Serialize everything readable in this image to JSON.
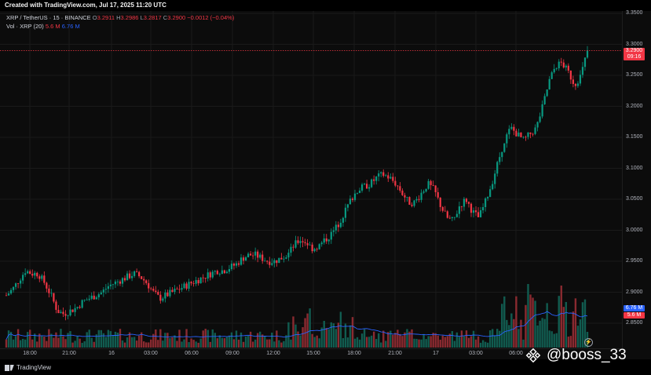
{
  "header": {
    "created_text": "Created with TradingView.com, Jul 17, 2025 11:20 UTC"
  },
  "legend": {
    "symbol": "XRP / TetherUS · 15 · BINANCE",
    "o_label": "O",
    "o_value": "3.2911",
    "h_label": "H",
    "h_value": "3.2986",
    "l_label": "L",
    "l_value": "3.2817",
    "c_label": "C",
    "c_value": "3.2900",
    "change": "−0.0012 (−0.04%)",
    "vol_label": "Vol · XRP (20)",
    "vol_value": "5.6 M",
    "vol_ma_value": "6.76 M"
  },
  "price_tags": {
    "last_price": "3.2900",
    "countdown": "09:16",
    "vol_ma": "6.76 M",
    "vol": "5.6 M"
  },
  "footer": {
    "brand": "TradingView",
    "watermark": "@booss_33"
  },
  "colors": {
    "up": "#089981",
    "down": "#f23645",
    "vol_up": "#115c50",
    "vol_down": "#8a2a30",
    "vol_ma": "#2962ff",
    "background": "#0c0c0c",
    "grid": "#1a1a1a"
  },
  "chart_data": {
    "type": "candlestick",
    "title": "XRP / TetherUS · 15 · BINANCE",
    "price_ticks": [
      "3.3500",
      "3.3000",
      "3.2500",
      "3.2000",
      "3.1500",
      "3.1000",
      "3.0500",
      "3.0000",
      "2.9500",
      "2.9000",
      "2.8500"
    ],
    "ylim": [
      2.83,
      3.36
    ],
    "time_ticks": [
      "18:00",
      "21:00",
      "16",
      "03:00",
      "06:00",
      "09:00",
      "12:00",
      "15:00",
      "18:00",
      "21:00",
      "17",
      "03:00",
      "06:00"
    ],
    "last_price": 3.29,
    "price_path": [
      [
        0,
        2.895
      ],
      [
        1,
        2.905
      ],
      [
        2,
        2.92
      ],
      [
        3,
        2.935
      ],
      [
        4,
        2.93
      ],
      [
        5,
        2.93
      ],
      [
        6,
        2.915
      ],
      [
        7,
        2.895
      ],
      [
        8,
        2.87
      ],
      [
        9,
        2.865
      ],
      [
        10,
        2.87
      ],
      [
        11,
        2.875
      ],
      [
        12,
        2.885
      ],
      [
        13,
        2.89
      ],
      [
        14,
        2.895
      ],
      [
        15,
        2.9
      ],
      [
        16,
        2.91
      ],
      [
        17,
        2.915
      ],
      [
        18,
        2.92
      ],
      [
        19,
        2.925
      ],
      [
        20,
        2.93
      ],
      [
        21,
        2.925
      ],
      [
        22,
        2.915
      ],
      [
        23,
        2.9
      ],
      [
        24,
        2.89
      ],
      [
        25,
        2.895
      ],
      [
        26,
        2.9
      ],
      [
        27,
        2.905
      ],
      [
        28,
        2.91
      ],
      [
        29,
        2.915
      ],
      [
        30,
        2.92
      ],
      [
        31,
        2.925
      ],
      [
        32,
        2.93
      ],
      [
        33,
        2.935
      ],
      [
        34,
        2.935
      ],
      [
        35,
        2.94
      ],
      [
        36,
        2.945
      ],
      [
        37,
        2.955
      ],
      [
        38,
        2.96
      ],
      [
        39,
        2.96
      ],
      [
        40,
        2.955
      ],
      [
        41,
        2.95
      ],
      [
        42,
        2.95
      ],
      [
        43,
        2.955
      ],
      [
        44,
        2.96
      ],
      [
        45,
        2.975
      ],
      [
        46,
        2.985
      ],
      [
        47,
        2.98
      ],
      [
        48,
        2.97
      ],
      [
        49,
        2.975
      ],
      [
        50,
        2.985
      ],
      [
        51,
        2.995
      ],
      [
        52,
        3.01
      ],
      [
        53,
        3.03
      ],
      [
        54,
        3.05
      ],
      [
        55,
        3.065
      ],
      [
        56,
        3.07
      ],
      [
        57,
        3.075
      ],
      [
        58,
        3.085
      ],
      [
        59,
        3.09
      ],
      [
        60,
        3.085
      ],
      [
        61,
        3.075
      ],
      [
        62,
        3.06
      ],
      [
        63,
        3.045
      ],
      [
        64,
        3.045
      ],
      [
        65,
        3.06
      ],
      [
        66,
        3.075
      ],
      [
        67,
        3.065
      ],
      [
        68,
        3.04
      ],
      [
        69,
        3.02
      ],
      [
        70,
        3.015
      ],
      [
        71,
        3.04
      ],
      [
        72,
        3.05
      ],
      [
        73,
        3.03
      ],
      [
        74,
        3.02
      ],
      [
        75,
        3.045
      ],
      [
        76,
        3.075
      ],
      [
        77,
        3.11
      ],
      [
        78,
        3.145
      ],
      [
        79,
        3.165
      ],
      [
        80,
        3.155
      ],
      [
        81,
        3.145
      ],
      [
        82,
        3.155
      ],
      [
        83,
        3.165
      ],
      [
        84,
        3.2
      ],
      [
        85,
        3.24
      ],
      [
        86,
        3.265
      ],
      [
        87,
        3.27
      ],
      [
        88,
        3.255
      ],
      [
        89,
        3.235
      ],
      [
        90,
        3.25
      ],
      [
        91,
        3.29
      ]
    ],
    "volume_axis_note": "volume bars with 20-period MA",
    "series": [
      {
        "name": "Vol · XRP (20)",
        "last": "5.6 M"
      },
      {
        "name": "MA",
        "last": "6.76 M"
      }
    ]
  }
}
